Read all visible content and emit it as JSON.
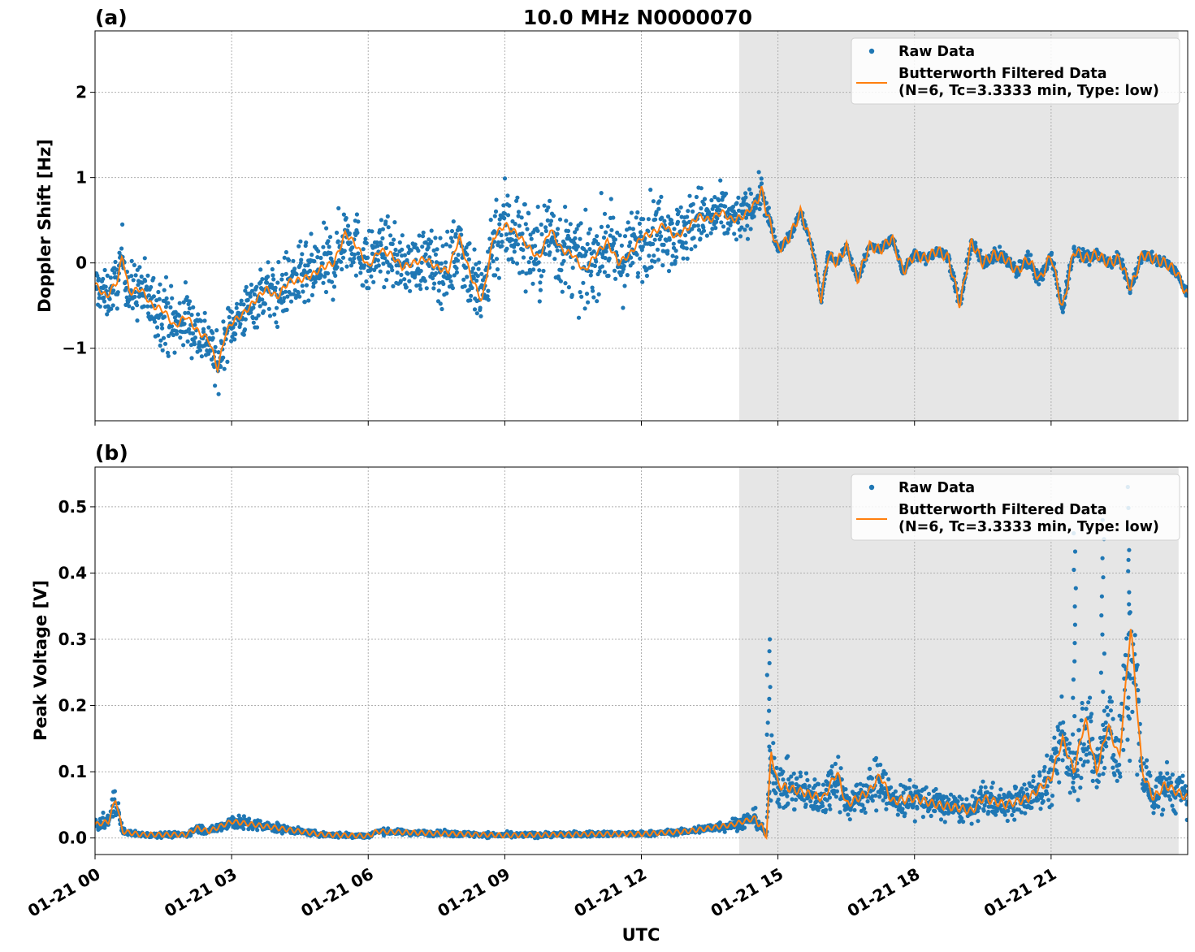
{
  "title": "10.0 MHz N0000070",
  "colors": {
    "raw": "#1f77b4",
    "filtered": "#ff7f0e",
    "shade": "#e6e6e6"
  },
  "shaded_hours": [
    14.15,
    23.8
  ],
  "xlabel": "UTC",
  "x_range_hours": [
    0,
    24
  ],
  "x_ticks": [
    {
      "hour": 0,
      "label": "01-21 00"
    },
    {
      "hour": 3,
      "label": "01-21 03"
    },
    {
      "hour": 6,
      "label": "01-21 06"
    },
    {
      "hour": 9,
      "label": "01-21 09"
    },
    {
      "hour": 12,
      "label": "01-21 12"
    },
    {
      "hour": 15,
      "label": "01-21 15"
    },
    {
      "hour": 18,
      "label": "01-21 18"
    },
    {
      "hour": 21,
      "label": "01-21 21"
    }
  ],
  "panels": [
    {
      "id": "a",
      "label": "(a)",
      "show_title": true,
      "ylabel": "Doppler Shift [Hz]",
      "ylim": [
        -1.85,
        2.72
      ],
      "y_ticks": [
        {
          "v": 2,
          "label": "2"
        },
        {
          "v": 1,
          "label": "1"
        },
        {
          "v": 0,
          "label": "0"
        },
        {
          "v": -1,
          "label": "−1"
        }
      ],
      "legend": {
        "raw": "Raw Data",
        "filtered_line1": "Butterworth Filtered Data",
        "filtered_line2": "(N=6, Tc=3.3333 min, Type: low)"
      }
    },
    {
      "id": "b",
      "label": "(b)",
      "show_title": false,
      "ylabel": "Peak Voltage [V]",
      "ylim": [
        -0.025,
        0.56
      ],
      "y_ticks": [
        {
          "v": 0.5,
          "label": "0.5"
        },
        {
          "v": 0.4,
          "label": "0.4"
        },
        {
          "v": 0.3,
          "label": "0.3"
        },
        {
          "v": 0.2,
          "label": "0.2"
        },
        {
          "v": 0.1,
          "label": "0.1"
        },
        {
          "v": 0.0,
          "label": "0.0"
        }
      ],
      "legend": {
        "raw": "Raw Data",
        "filtered_line1": "Butterworth Filtered Data",
        "filtered_line2": "(N=6, Tc=3.3333 min, Type: low)"
      }
    }
  ],
  "chart_data": [
    {
      "type": "scatter",
      "title": "10.0 MHz N0000070",
      "xlabel": "",
      "ylabel": "Doppler Shift [Hz]",
      "x_unit": "hours UTC on 01-21",
      "ylim": [
        -1.85,
        2.72
      ],
      "grid": true,
      "legend_position": "top-right",
      "series": [
        {
          "name": "Butterworth Filtered Data (N=6, Tc=3.3333 min, Type: low)",
          "x": [
            0,
            0.25,
            0.5,
            0.6,
            0.75,
            1.0,
            1.25,
            1.5,
            1.75,
            2.0,
            2.25,
            2.5,
            2.7,
            2.85,
            3.0,
            3.25,
            3.5,
            3.75,
            4.0,
            4.25,
            4.5,
            4.75,
            5.0,
            5.25,
            5.5,
            5.75,
            6.0,
            6.25,
            6.5,
            6.75,
            7.0,
            7.25,
            7.5,
            7.75,
            8.0,
            8.25,
            8.5,
            8.75,
            9.0,
            9.25,
            9.5,
            9.75,
            10.0,
            10.25,
            10.5,
            10.75,
            11.0,
            11.25,
            11.5,
            11.75,
            12.0,
            12.25,
            12.5,
            12.75,
            13.0,
            13.25,
            13.5,
            13.75,
            14.0,
            14.25,
            14.5,
            14.65,
            14.75,
            15.0,
            15.25,
            15.5,
            15.75,
            15.95,
            16.1,
            16.3,
            16.5,
            16.75,
            17.0,
            17.25,
            17.5,
            17.75,
            18.0,
            18.25,
            18.5,
            18.75,
            19.0,
            19.25,
            19.5,
            19.75,
            20.0,
            20.25,
            20.5,
            20.75,
            21.0,
            21.25,
            21.5,
            21.75,
            22.0,
            22.25,
            22.5,
            22.75,
            23.0,
            23.25,
            23.5,
            23.75,
            24.0
          ],
          "y": [
            -0.25,
            -0.4,
            -0.2,
            0.1,
            -0.35,
            -0.3,
            -0.5,
            -0.55,
            -0.75,
            -0.62,
            -0.8,
            -0.9,
            -1.25,
            -0.85,
            -0.7,
            -0.6,
            -0.45,
            -0.3,
            -0.4,
            -0.22,
            -0.2,
            -0.15,
            -0.05,
            0.0,
            0.35,
            0.2,
            -0.05,
            0.15,
            0.1,
            -0.05,
            0.0,
            0.05,
            -0.05,
            -0.1,
            0.3,
            -0.15,
            -0.45,
            0.3,
            0.45,
            0.35,
            0.2,
            0.05,
            0.4,
            0.15,
            0.1,
            -0.1,
            0.1,
            0.25,
            0.0,
            0.1,
            0.3,
            0.35,
            0.45,
            0.3,
            0.4,
            0.55,
            0.5,
            0.6,
            0.5,
            0.55,
            0.7,
            0.85,
            0.6,
            0.15,
            0.3,
            0.6,
            0.2,
            -0.45,
            0.1,
            0.0,
            0.2,
            -0.2,
            0.2,
            0.15,
            0.3,
            -0.1,
            0.1,
            0.05,
            0.15,
            0.05,
            -0.5,
            0.25,
            0.0,
            0.1,
            0.05,
            -0.1,
            0.05,
            -0.2,
            0.1,
            -0.55,
            0.15,
            0.05,
            0.1,
            0.0,
            0.05,
            -0.3,
            0.1,
            0.05,
            0.0,
            -0.1,
            -0.4
          ]
        },
        {
          "name": "Raw Data",
          "description_scatter_band_halfwidth": "raw points scatter around the filtered curve",
          "x": [
            0.0,
            1.5,
            3.0,
            5.0,
            7.0,
            9.0,
            10.0,
            12.5,
            13.5,
            14.5,
            15.0,
            18.0,
            21.0,
            23.5
          ],
          "y_spread": [
            0.25,
            0.45,
            0.3,
            0.45,
            0.35,
            0.6,
            0.55,
            0.45,
            0.35,
            0.25,
            0.05,
            0.06,
            0.1,
            0.06
          ]
        }
      ]
    },
    {
      "type": "scatter",
      "title": "",
      "xlabel": "UTC",
      "ylabel": "Peak Voltage [V]",
      "x_unit": "hours UTC on 01-21",
      "ylim": [
        -0.025,
        0.56
      ],
      "grid": true,
      "legend_position": "top-right",
      "series": [
        {
          "name": "Butterworth Filtered Data (N=6, Tc=3.3333 min, Type: low)",
          "x": [
            0,
            0.3,
            0.45,
            0.6,
            1.0,
            2.0,
            2.25,
            2.5,
            3.0,
            3.5,
            4.0,
            4.5,
            5.0,
            6.0,
            6.2,
            7.0,
            8.0,
            9.0,
            10.0,
            11.0,
            12.0,
            13.0,
            13.5,
            14.0,
            14.5,
            14.75,
            14.85,
            15.0,
            15.5,
            16.0,
            16.3,
            16.5,
            17.0,
            17.25,
            17.5,
            18.0,
            18.5,
            19.0,
            19.25,
            19.5,
            20.0,
            20.5,
            21.0,
            21.25,
            21.5,
            21.75,
            22.0,
            22.25,
            22.5,
            22.75,
            23.0,
            23.25,
            23.5,
            24.0
          ],
          "y": [
            0.02,
            0.025,
            0.06,
            0.01,
            0.005,
            0.005,
            0.015,
            0.01,
            0.025,
            0.02,
            0.015,
            0.01,
            0.005,
            0.003,
            0.01,
            0.008,
            0.006,
            0.004,
            0.005,
            0.006,
            0.006,
            0.01,
            0.015,
            0.02,
            0.03,
            0.005,
            0.13,
            0.08,
            0.07,
            0.06,
            0.1,
            0.05,
            0.07,
            0.095,
            0.055,
            0.06,
            0.05,
            0.045,
            0.04,
            0.06,
            0.05,
            0.06,
            0.09,
            0.15,
            0.1,
            0.18,
            0.1,
            0.17,
            0.12,
            0.32,
            0.1,
            0.06,
            0.08,
            0.06
          ]
        },
        {
          "name": "Raw Data",
          "peak_x": [
            14.8,
            21.5,
            22.15,
            22.7
          ],
          "peak_y": [
            0.3,
            0.46,
            0.48,
            0.53
          ]
        }
      ]
    }
  ]
}
